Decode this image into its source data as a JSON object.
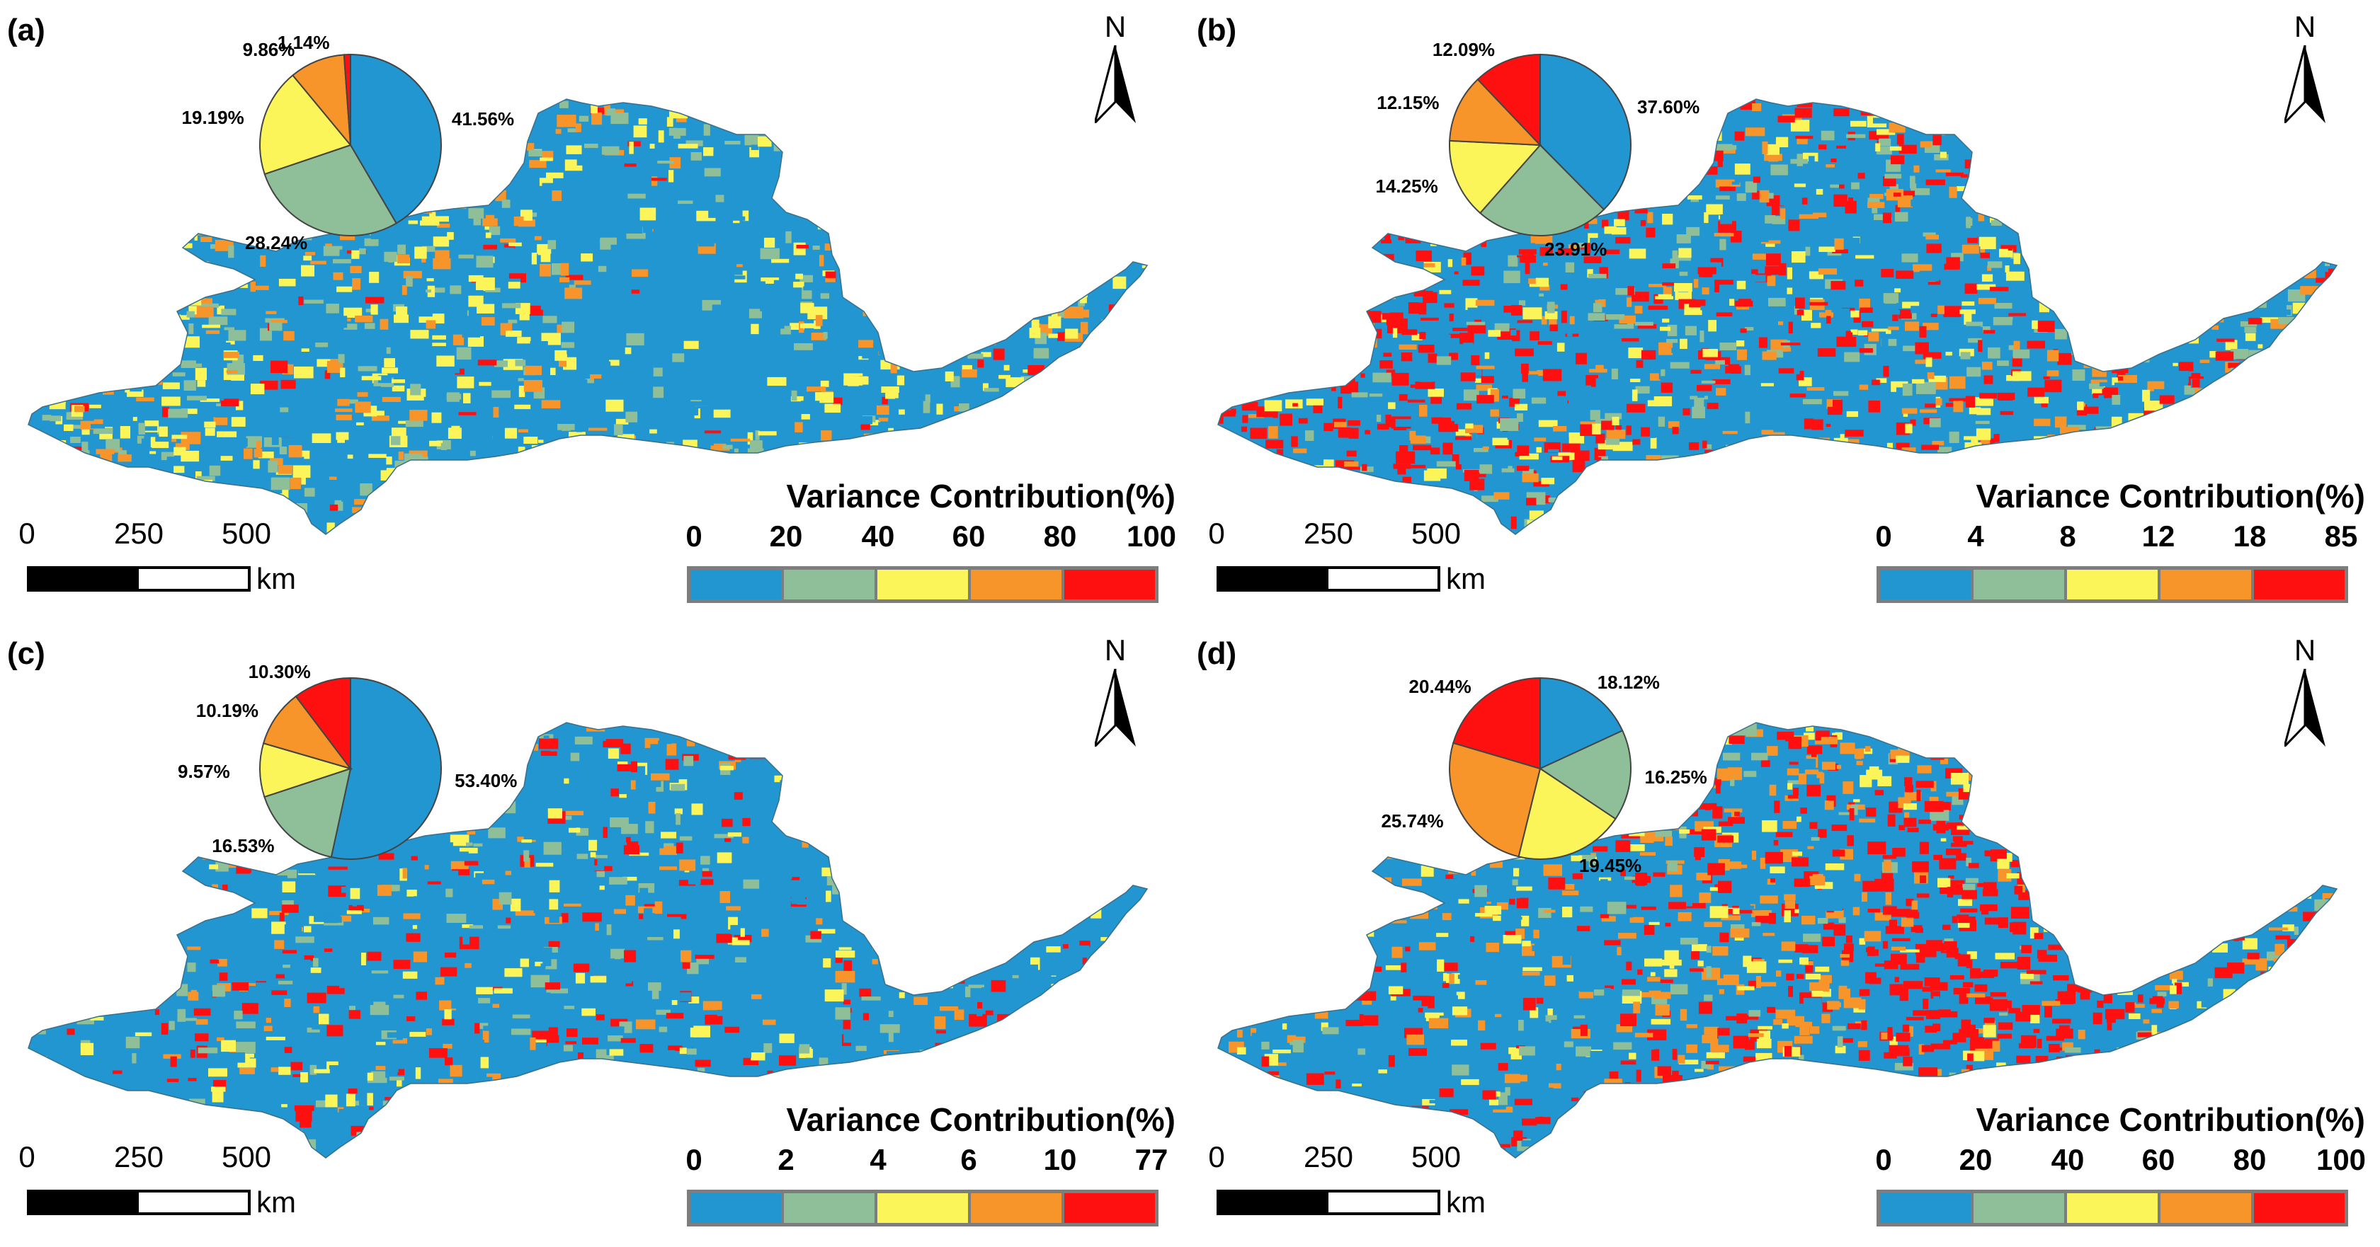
{
  "scale_bar": {
    "ticks": [
      "0",
      "250",
      "500"
    ],
    "unit": "km"
  },
  "north_label": "N",
  "legend_title": "Variance Contribution(%)",
  "colors": {
    "c1": "#2196d0",
    "c2": "#8fbf98",
    "c3": "#fbf55a",
    "c4": "#f7942a",
    "c5": "#ff1010"
  },
  "panels": [
    {
      "label": "(a)",
      "legend_ticks": [
        "0",
        "20",
        "40",
        "60",
        "80",
        "100"
      ],
      "pie": {
        "values": [
          41.56,
          28.24,
          19.19,
          9.86,
          1.14
        ],
        "labels": [
          "41.56%",
          "28.24%",
          "19.19%",
          "9.86%",
          "1.14%"
        ]
      }
    },
    {
      "label": "(b)",
      "legend_ticks": [
        "0",
        "4",
        "8",
        "12",
        "18",
        "85"
      ],
      "pie": {
        "values": [
          37.6,
          23.91,
          14.25,
          12.15,
          12.09
        ],
        "labels": [
          "37.60%",
          "23.91%",
          "14.25%",
          "12.15%",
          "12.09%"
        ]
      }
    },
    {
      "label": "(c)",
      "legend_ticks": [
        "0",
        "2",
        "4",
        "6",
        "10",
        "77"
      ],
      "pie": {
        "values": [
          53.4,
          16.53,
          9.57,
          10.19,
          10.3
        ],
        "labels": [
          "53.40%",
          "16.53%",
          "9.57%",
          "10.19%",
          "10.30%"
        ]
      }
    },
    {
      "label": "(d)",
      "legend_ticks": [
        "0",
        "20",
        "40",
        "60",
        "80",
        "100"
      ],
      "pie": {
        "values": [
          18.12,
          16.25,
          19.45,
          25.74,
          20.44
        ],
        "labels": [
          "18.12%",
          "16.25%",
          "19.45%",
          "25.74%",
          "20.44%"
        ]
      }
    }
  ]
}
